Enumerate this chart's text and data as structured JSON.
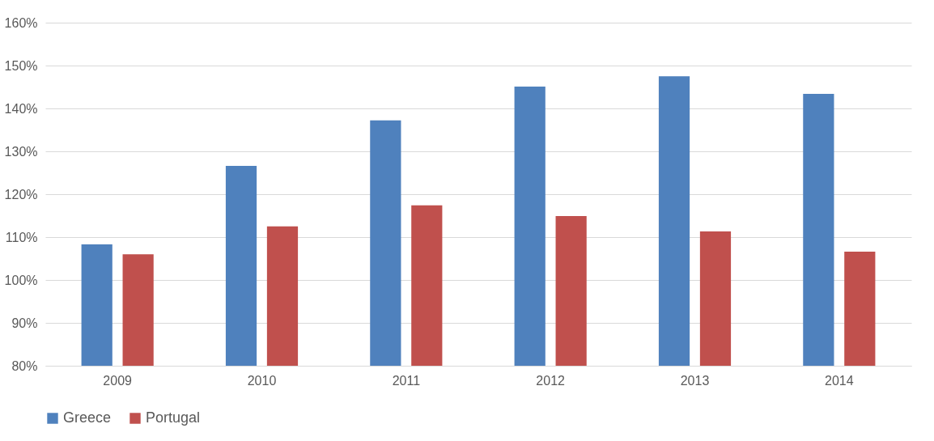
{
  "chart_data": {
    "type": "bar",
    "categories": [
      "2009",
      "2010",
      "2011",
      "2012",
      "2013",
      "2014"
    ],
    "series": [
      {
        "name": "Greece",
        "color": "#4f81bd",
        "values": [
          108.3,
          126.6,
          137.2,
          145.1,
          147.5,
          143.4
        ]
      },
      {
        "name": "Portugal",
        "color": "#c0504d",
        "values": [
          106.0,
          112.5,
          117.4,
          114.9,
          111.3,
          106.6
        ]
      }
    ],
    "ylim": [
      80,
      160
    ],
    "yticks": [
      {
        "value": 80,
        "label": "80%"
      },
      {
        "value": 90,
        "label": "90%"
      },
      {
        "value": 100,
        "label": "100%"
      },
      {
        "value": 110,
        "label": "110%"
      },
      {
        "value": 120,
        "label": "120%"
      },
      {
        "value": 130,
        "label": "130%"
      },
      {
        "value": 140,
        "label": "140%"
      },
      {
        "value": 150,
        "label": "150%"
      },
      {
        "value": 160,
        "label": "160%"
      }
    ],
    "grid": "y",
    "legend": "bottom"
  }
}
